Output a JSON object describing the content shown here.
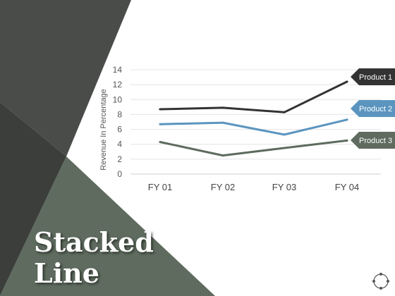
{
  "slide": {
    "title_line1": "Stacked",
    "title_line2": "Line"
  },
  "colors": {
    "dark_panel": "#4a4c4a",
    "darker_panel": "#3c3e3c",
    "green_panel": "#5e6b5e",
    "product1": "#333333",
    "product2": "#5b95bf",
    "product3": "#5e6b5e"
  },
  "icons": {
    "nav": "circle-dots-icon"
  },
  "chart_data": {
    "type": "line",
    "categories": [
      "FY 01",
      "FY 02",
      "FY 03",
      "FY 04"
    ],
    "series": [
      {
        "name": "Product 1",
        "values": [
          8.7,
          8.9,
          8.3,
          12.4
        ],
        "color": "#333333"
      },
      {
        "name": "Product 2",
        "values": [
          6.7,
          6.9,
          5.3,
          7.3
        ],
        "color": "#5b95bf"
      },
      {
        "name": "Product 3",
        "values": [
          4.3,
          2.5,
          3.5,
          4.5
        ],
        "color": "#5e6b5e"
      }
    ],
    "y_ticks": [
      "0",
      "2",
      "4",
      "6",
      "8",
      "10",
      "12",
      "14"
    ],
    "ylim": [
      0,
      14
    ],
    "ylabel": "Revenue In Percentage",
    "xlabel": "",
    "grid": true,
    "legend": "right, arrow labels at line ends"
  }
}
